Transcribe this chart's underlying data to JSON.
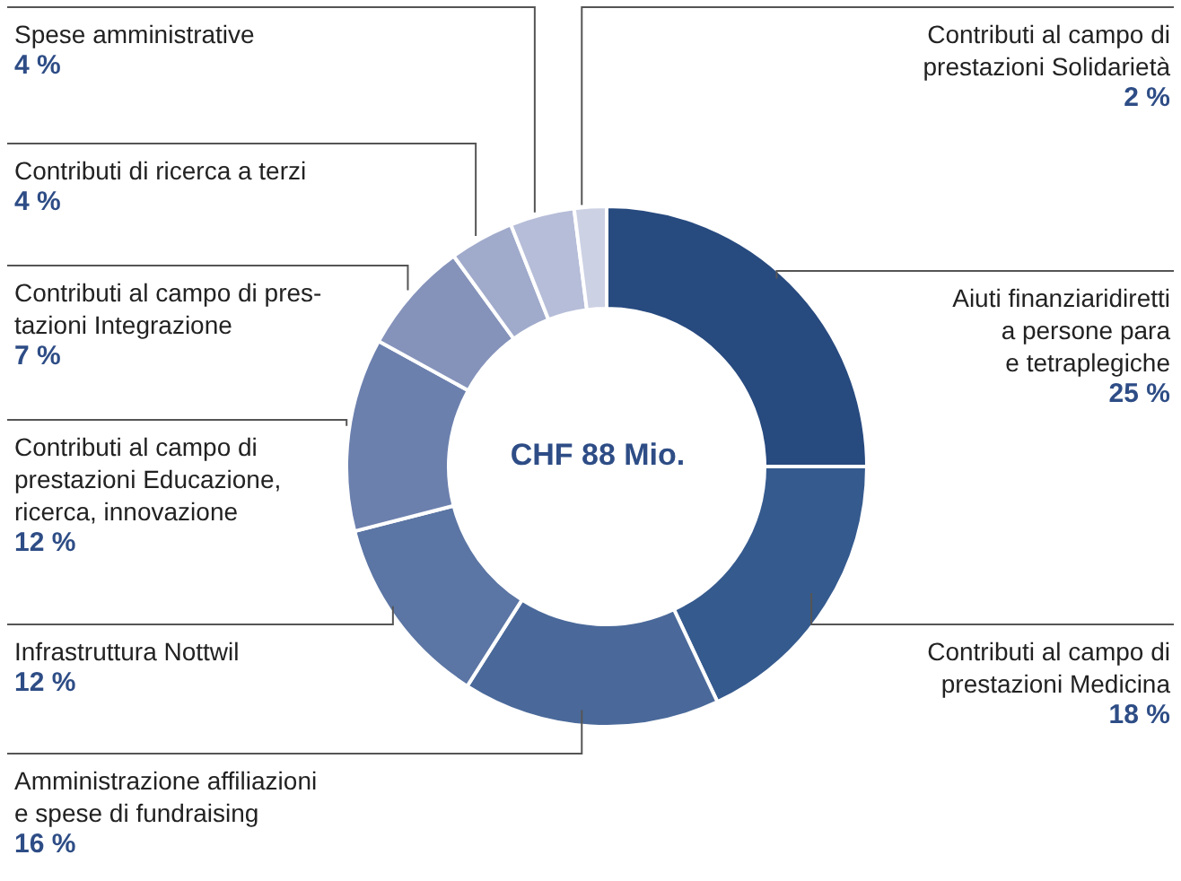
{
  "chart_data": {
    "type": "donut",
    "categories": [
      "Aiuti finanziaridiretti\na persone para\ne tetraplegiche",
      "Contributi al campo di\nprestazioni Medicina",
      "Amministrazione affiliazioni\ne spese di fundraising",
      "Infrastruttura Nottwil",
      "Contributi al campo di\nprestazioni Educazione,\nricerca, innovazione",
      "Contributi al campo di pres-\ntazioni Integrazione",
      "Contributi di ricerca a terzi",
      "Spese amministrative",
      "Contributi al campo di\nprestazioni Solidarietà"
    ],
    "values": [
      25,
      18,
      16,
      12,
      12,
      7,
      4,
      4,
      2
    ],
    "value_labels": [
      "25 %",
      "18 %",
      "16 %",
      "12 %",
      "12 %",
      "7 %",
      "4 %",
      "4 %",
      "2 %"
    ],
    "colors": [
      "#274a7f",
      "#355a8e",
      "#4a699a",
      "#5b75a4",
      "#6c80ae",
      "#8593bb",
      "#a0aacb",
      "#b6bdd8",
      "#ccd1e4"
    ],
    "annotations": [
      "CHF 88 Mio."
    ]
  }
}
